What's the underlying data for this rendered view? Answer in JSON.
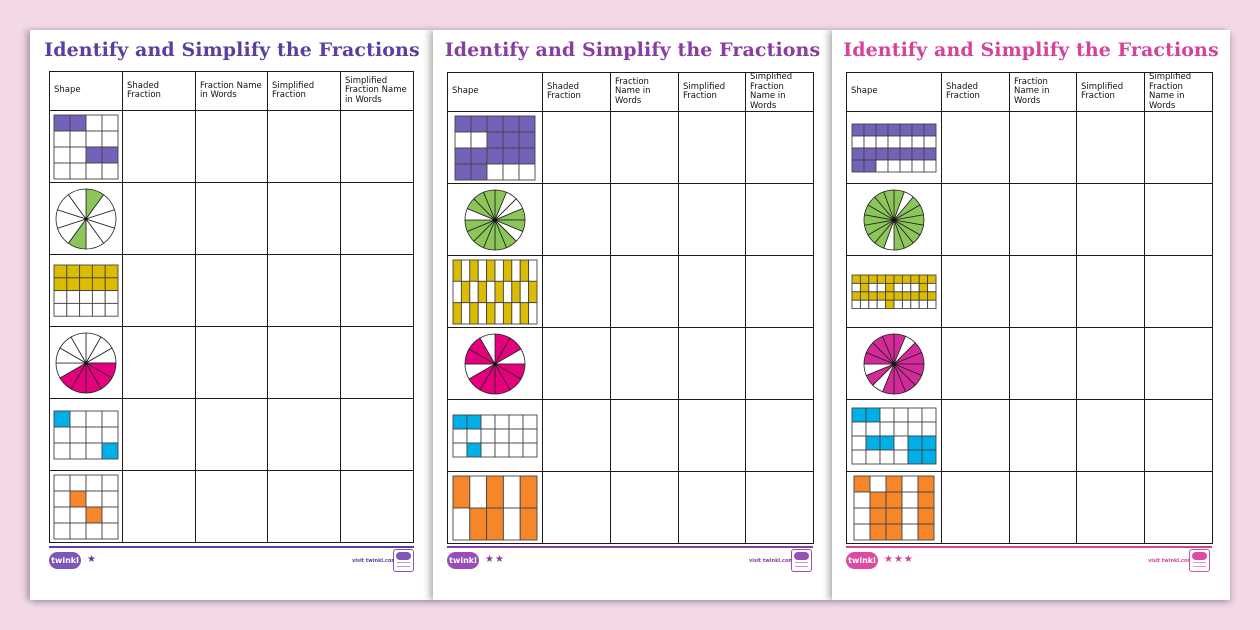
{
  "background_color": "#f3d9e8",
  "worksheets": [
    {
      "title": "Identify and Simplify the Fractions",
      "title_color": "#5a3fa0",
      "accent_color": "#5a3fa0",
      "difficulty_stars": "★",
      "headers": [
        "Shape",
        "Shaded Fraction",
        "Fraction Name in Words",
        "Simplified Fraction",
        "Simplified Fraction Name in Words"
      ],
      "shapes": [
        {
          "type": "grid",
          "color": "#7461b8",
          "rows": 4,
          "cols": 4,
          "shaded": [
            [
              0,
              0
            ],
            [
              0,
              1
            ],
            [
              2,
              2
            ],
            [
              2,
              3
            ]
          ]
        },
        {
          "type": "pie",
          "color": "#8cc65a",
          "slices": 10,
          "shaded": [
            0,
            5
          ]
        },
        {
          "type": "grid",
          "color": "#dcbc00",
          "rows": 4,
          "cols": 5,
          "shaded": [
            [
              0,
              0
            ],
            [
              0,
              1
            ],
            [
              0,
              2
            ],
            [
              0,
              3
            ],
            [
              0,
              4
            ],
            [
              1,
              0
            ],
            [
              1,
              1
            ],
            [
              1,
              2
            ],
            [
              1,
              3
            ],
            [
              1,
              4
            ]
          ]
        },
        {
          "type": "pie",
          "color": "#e5007d",
          "slices": 12,
          "shaded": [
            3,
            4,
            5,
            6,
            7
          ]
        },
        {
          "type": "grid",
          "color": "#00aee8",
          "rows": 3,
          "cols": 4,
          "shaded": [
            [
              0,
              0
            ],
            [
              2,
              3
            ]
          ]
        },
        {
          "type": "grid",
          "color": "#f5862a",
          "rows": 4,
          "cols": 4,
          "shaded": [
            [
              1,
              1
            ],
            [
              2,
              2
            ]
          ]
        }
      ],
      "footer": {
        "logo_text": "twinkl",
        "visit_text": "visit twinkl.com",
        "badge_icon": "quality-standard-approved-badge"
      }
    },
    {
      "title": "Identify and Simplify the Fractions",
      "title_color": "#8a3da0",
      "accent_color": "#8a3da0",
      "difficulty_stars": "★★",
      "headers": [
        "Shape",
        "Shaded Fraction",
        "Fraction Name in Words",
        "Simplified Fraction",
        "Simplified Fraction Name in Words"
      ],
      "shapes": [
        {
          "type": "grid",
          "color": "#7461b8",
          "rows": 4,
          "cols": 5,
          "shaded": [
            [
              0,
              0
            ],
            [
              0,
              1
            ],
            [
              0,
              2
            ],
            [
              0,
              3
            ],
            [
              0,
              4
            ],
            [
              1,
              2
            ],
            [
              1,
              3
            ],
            [
              1,
              4
            ],
            [
              2,
              0
            ],
            [
              2,
              1
            ],
            [
              2,
              2
            ],
            [
              2,
              3
            ],
            [
              2,
              4
            ],
            [
              3,
              0
            ],
            [
              3,
              1
            ]
          ]
        },
        {
          "type": "pie",
          "color": "#8cc65a",
          "slices": 16,
          "shaded": [
            0,
            3,
            4,
            6,
            7,
            8,
            9,
            10,
            11,
            13,
            14,
            15
          ]
        },
        {
          "type": "grid",
          "color": "#dcbc00",
          "rows": 3,
          "cols": 10,
          "shaded": [
            [
              0,
              0
            ],
            [
              0,
              2
            ],
            [
              0,
              4
            ],
            [
              0,
              6
            ],
            [
              0,
              8
            ],
            [
              1,
              1
            ],
            [
              1,
              3
            ],
            [
              1,
              5
            ],
            [
              1,
              7
            ],
            [
              1,
              9
            ],
            [
              2,
              0
            ],
            [
              2,
              2
            ],
            [
              2,
              4
            ],
            [
              2,
              6
            ],
            [
              2,
              8
            ]
          ]
        },
        {
          "type": "pie",
          "color": "#e5007d",
          "slices": 12,
          "shaded": [
            0,
            1,
            3,
            4,
            5,
            6,
            7,
            9,
            10
          ]
        },
        {
          "type": "grid",
          "color": "#00aee8",
          "rows": 3,
          "cols": 6,
          "shaded": [
            [
              0,
              0
            ],
            [
              0,
              1
            ],
            [
              2,
              1
            ]
          ]
        },
        {
          "type": "grid",
          "color": "#f5862a",
          "rows": 2,
          "cols": 5,
          "shaded": [
            [
              0,
              0
            ],
            [
              0,
              2
            ],
            [
              0,
              4
            ],
            [
              1,
              1
            ],
            [
              1,
              2
            ],
            [
              1,
              4
            ]
          ]
        }
      ],
      "footer": {
        "logo_text": "twinkl",
        "visit_text": "visit twinkl.com",
        "badge_icon": "quality-standard-approved-badge"
      }
    },
    {
      "title": "Identify and Simplify the Fractions",
      "title_color": "#d4439a",
      "accent_color": "#d4439a",
      "difficulty_stars": "★★★",
      "headers": [
        "Shape",
        "Shaded Fraction",
        "Fraction Name in Words",
        "Simplified Fraction",
        "Simplified Fraction Name in Words"
      ],
      "shapes": [
        {
          "type": "grid",
          "color": "#7461b8",
          "rows": 4,
          "cols": 7,
          "shaded": [
            [
              0,
              0
            ],
            [
              0,
              1
            ],
            [
              0,
              2
            ],
            [
              0,
              3
            ],
            [
              0,
              4
            ],
            [
              0,
              5
            ],
            [
              0,
              6
            ],
            [
              2,
              0
            ],
            [
              2,
              1
            ],
            [
              2,
              2
            ],
            [
              2,
              3
            ],
            [
              2,
              4
            ],
            [
              2,
              5
            ],
            [
              2,
              6
            ],
            [
              3,
              0
            ],
            [
              3,
              1
            ]
          ]
        },
        {
          "type": "pie",
          "color": "#8cc65a",
          "slices": 18,
          "shaded": [
            0,
            2,
            3,
            4,
            5,
            6,
            7,
            8,
            10,
            11,
            12,
            13,
            14,
            15,
            16,
            17
          ]
        },
        {
          "type": "grid",
          "color": "#dcbc00",
          "rows": 4,
          "cols": 10,
          "shaded": [
            [
              0,
              0
            ],
            [
              0,
              1
            ],
            [
              0,
              2
            ],
            [
              0,
              3
            ],
            [
              0,
              4
            ],
            [
              0,
              5
            ],
            [
              0,
              6
            ],
            [
              0,
              7
            ],
            [
              0,
              8
            ],
            [
              0,
              9
            ],
            [
              1,
              1
            ],
            [
              1,
              4
            ],
            [
              1,
              8
            ],
            [
              2,
              0
            ],
            [
              2,
              1
            ],
            [
              2,
              2
            ],
            [
              2,
              3
            ],
            [
              2,
              4
            ],
            [
              2,
              5
            ],
            [
              2,
              6
            ],
            [
              2,
              7
            ],
            [
              2,
              8
            ],
            [
              2,
              9
            ],
            [
              3,
              4
            ]
          ]
        },
        {
          "type": "pie",
          "color": "#d4299a",
          "slices": 16,
          "shaded": [
            0,
            2,
            3,
            4,
            5,
            6,
            7,
            8,
            10,
            12,
            13,
            14,
            15
          ]
        },
        {
          "type": "grid",
          "color": "#00aee8",
          "rows": 4,
          "cols": 6,
          "shaded": [
            [
              0,
              0
            ],
            [
              0,
              1
            ],
            [
              2,
              1
            ],
            [
              2,
              2
            ],
            [
              2,
              4
            ],
            [
              2,
              5
            ],
            [
              3,
              4
            ],
            [
              3,
              5
            ]
          ]
        },
        {
          "type": "grid",
          "color": "#f5862a",
          "rows": 4,
          "cols": 5,
          "shaded": [
            [
              0,
              0
            ],
            [
              0,
              2
            ],
            [
              0,
              4
            ],
            [
              1,
              1
            ],
            [
              1,
              2
            ],
            [
              1,
              4
            ],
            [
              2,
              1
            ],
            [
              2,
              2
            ],
            [
              2,
              4
            ],
            [
              3,
              1
            ],
            [
              3,
              2
            ],
            [
              3,
              4
            ]
          ]
        }
      ],
      "footer": {
        "logo_text": "twinkl",
        "visit_text": "visit twinkl.com",
        "badge_icon": "quality-standard-approved-badge"
      }
    }
  ]
}
